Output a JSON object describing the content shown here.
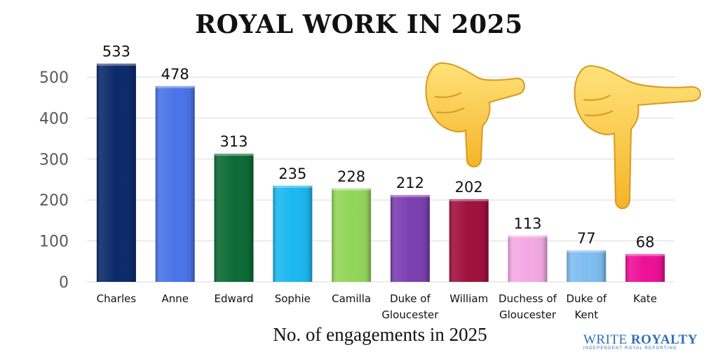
{
  "chart_data": {
    "type": "bar",
    "title": "ROYAL WORK IN 2025",
    "xlabel": "No. of engagements in 2025",
    "ylabel": "",
    "ylim": [
      0,
      533
    ],
    "yticks": [
      0,
      100,
      200,
      300,
      400,
      500
    ],
    "grid": true,
    "categories": [
      [
        "Charles"
      ],
      [
        "Anne"
      ],
      [
        "Edward"
      ],
      [
        "Sophie"
      ],
      [
        "Camilla"
      ],
      [
        "Duke of",
        "Gloucester"
      ],
      [
        "William"
      ],
      [
        "Duchess of",
        "Gloucester"
      ],
      [
        "Duke of",
        "Kent"
      ],
      [
        "Kate"
      ]
    ],
    "values": [
      533,
      478,
      313,
      235,
      228,
      212,
      202,
      113,
      77,
      68
    ],
    "colors": [
      "#0b2a6a",
      "#4a74e8",
      "#0b6b35",
      "#1cb8f0",
      "#93d65a",
      "#7b3fb0",
      "#a0103e",
      "#f4a9e4",
      "#7fbdf0",
      "#ee0f98"
    ]
  },
  "decorations": {
    "icons": [
      "backhand-index-pointing-down-icon",
      "backhand-index-pointing-down-icon"
    ]
  },
  "brand": {
    "name_part1": "WRITE",
    "name_part2": "ROYALTY",
    "tagline": "INDEPENDENT ROYAL REPORTING"
  }
}
